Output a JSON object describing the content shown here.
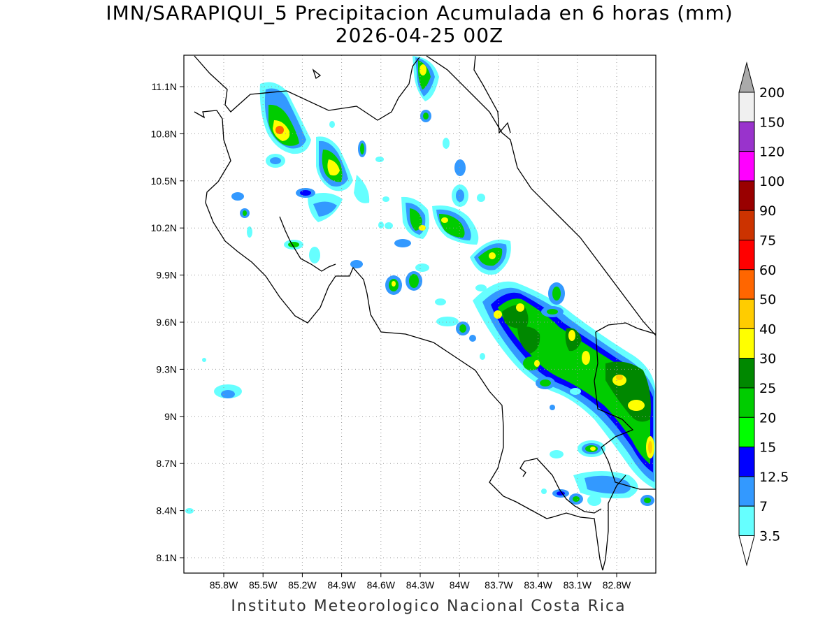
{
  "title": {
    "line1": "IMN/SARAPIQUI_5 Precipitacion Acumulada en 6 horas (mm)",
    "line2": "2026-04-25 00Z"
  },
  "footer": "Instituto Meteorologico Nacional Costa Rica",
  "map": {
    "lon_range": [
      -86.05,
      -82.55
    ],
    "lat_range": [
      8.0,
      11.3
    ],
    "lon_ticks": [
      "85.8W",
      "85.5W",
      "85.2W",
      "84.9W",
      "84.6W",
      "84.3W",
      "84W",
      "83.7W",
      "83.4W",
      "83.1W",
      "82.8W"
    ],
    "lat_ticks": [
      "11.1N",
      "10.8N",
      "10.5N",
      "10.2N",
      "9.9N",
      "9.6N",
      "9.3N",
      "9N",
      "8.7N",
      "8.4N",
      "8.1N"
    ],
    "grid": "dotted"
  },
  "colorbar": {
    "labels": [
      "3.5",
      "7",
      "12.5",
      "15",
      "20",
      "25",
      "30",
      "40",
      "50",
      "60",
      "75",
      "90",
      "100",
      "120",
      "150",
      "200"
    ],
    "colors": [
      "#66ffff",
      "#3399ff",
      "#0000ff",
      "#00ff00",
      "#00cc00",
      "#008800",
      "#ffff00",
      "#ffcc00",
      "#ff6600",
      "#ff0000",
      "#cc3300",
      "#990000",
      "#ff00ff",
      "#9933cc",
      "#f0f0f0"
    ],
    "top_arrow_color": "#aaaaaa",
    "bottom_arrow_color": "#ffffff"
  }
}
